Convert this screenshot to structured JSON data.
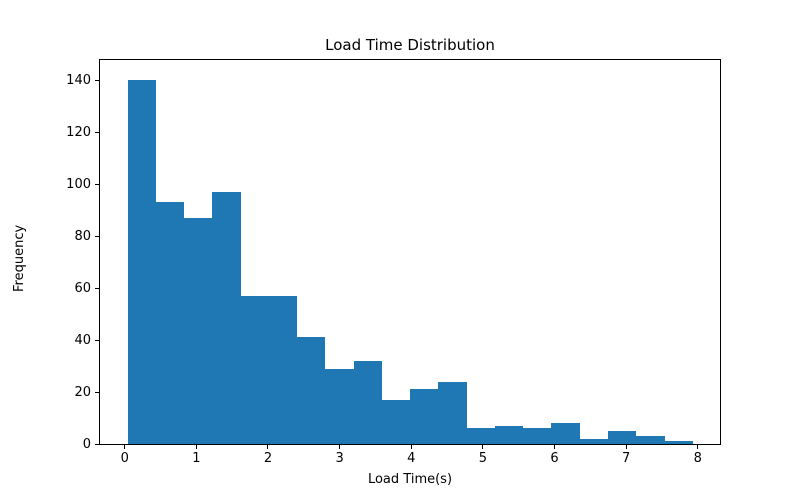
{
  "chart_data": {
    "type": "bar",
    "subtype": "histogram",
    "title": "Load Time Distribution",
    "xlabel": "Load Time(s)",
    "ylabel": "Frequency",
    "bar_color": "#1f77b4",
    "axis_color": "#000000",
    "background_color": "#ffffff",
    "grid": false,
    "legend": null,
    "xlim": [
      -0.345,
      8.31
    ],
    "ylim": [
      0,
      147.7
    ],
    "xticks": [
      0,
      1,
      2,
      3,
      4,
      5,
      6,
      7,
      8
    ],
    "yticks": [
      0,
      20,
      40,
      60,
      80,
      100,
      120,
      140
    ],
    "bin_start": 0.04,
    "bin_end": 7.93,
    "bins": 20,
    "values": [
      140,
      93,
      87,
      97,
      57,
      57,
      41,
      29,
      32,
      17,
      21,
      24,
      6,
      7,
      6,
      8,
      2,
      5,
      3,
      1
    ]
  }
}
